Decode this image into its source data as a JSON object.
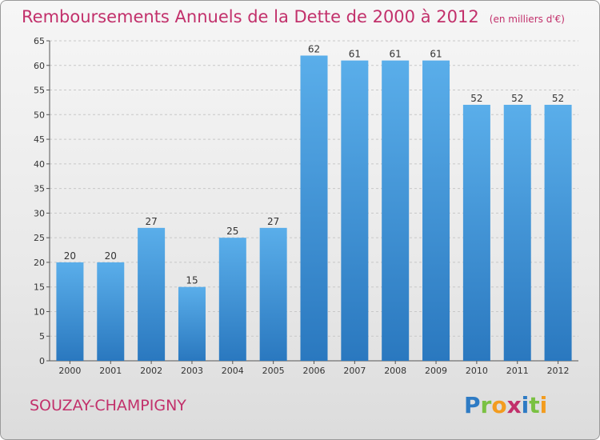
{
  "title": "Remboursements Annuels de la Dette de 2000 à 2012",
  "unit": "(en milliers d'€)",
  "commune": "SOUZAY-CHAMPIGNY",
  "logo_text": "Proxiti",
  "colors": {
    "accent": "#c2306b",
    "bar": "#4a9fe0",
    "bar_dark": "#2a78bf"
  },
  "chart_data": {
    "type": "bar",
    "categories": [
      "2000",
      "2001",
      "2002",
      "2003",
      "2004",
      "2005",
      "2006",
      "2007",
      "2008",
      "2009",
      "2010",
      "2011",
      "2012"
    ],
    "values": [
      20,
      20,
      27,
      15,
      25,
      27,
      62,
      61,
      61,
      61,
      52,
      52,
      52
    ],
    "ylim": [
      0,
      65
    ],
    "yticks": [
      0,
      5,
      10,
      15,
      20,
      25,
      30,
      35,
      40,
      45,
      50,
      55,
      60,
      65
    ],
    "grid": true
  }
}
